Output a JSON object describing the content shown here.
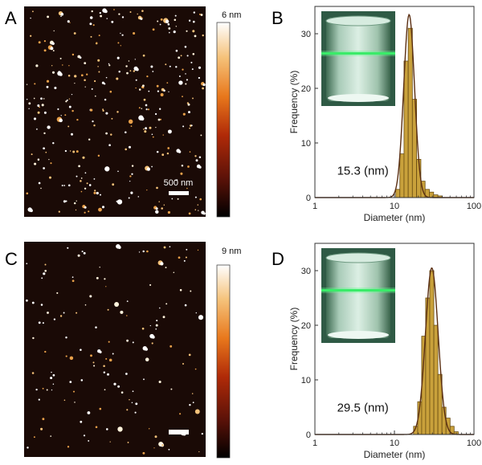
{
  "figure": {
    "panels": [
      {
        "key": "A",
        "label": "A",
        "type": "afm-image",
        "colorbar_max": "6 nm",
        "scalebar_label": "500 nm",
        "particle_seed": 11,
        "particle_count": 320
      },
      {
        "key": "B",
        "label": "B",
        "type": "histogram",
        "peak_annotation": "15.3 (nm)"
      },
      {
        "key": "C",
        "label": "C",
        "type": "afm-image",
        "colorbar_max": "9 nm",
        "scalebar_label": "",
        "particle_seed": 47,
        "particle_count": 150
      },
      {
        "key": "D",
        "label": "D",
        "type": "histogram",
        "peak_annotation": "29.5 (nm)"
      }
    ]
  },
  "colors": {
    "afm_background": "#1a0a06",
    "bar_fill": "#c9a13b",
    "bar_stroke": "#6a4d12",
    "fit_curve": "#5a2e12",
    "colormap": [
      "#000000",
      "#5c1208",
      "#b02a08",
      "#e8781c",
      "#f5c27a",
      "#ffffff"
    ]
  },
  "chart_data": [
    {
      "panel": "B",
      "type": "bar",
      "xscale": "log",
      "xlim": [
        1,
        100
      ],
      "ylim": [
        0,
        35
      ],
      "xlabel": "Diameter (nm)",
      "ylabel": "Frequency (%)",
      "xticks": [
        1,
        10,
        100
      ],
      "yticks": [
        0,
        10,
        20,
        30
      ],
      "bins": [
        {
          "x0": 10.4,
          "x1": 11.7,
          "value": 1.5
        },
        {
          "x0": 11.7,
          "x1": 13.2,
          "value": 8
        },
        {
          "x0": 13.2,
          "x1": 14.9,
          "value": 25
        },
        {
          "x0": 14.9,
          "x1": 16.8,
          "value": 31
        },
        {
          "x0": 16.8,
          "x1": 19.0,
          "value": 18
        },
        {
          "x0": 19.0,
          "x1": 21.5,
          "value": 7
        },
        {
          "x0": 21.5,
          "x1": 24.3,
          "value": 3
        },
        {
          "x0": 24.3,
          "x1": 27.5,
          "value": 1.5
        },
        {
          "x0": 27.5,
          "x1": 31.1,
          "value": 1
        },
        {
          "x0": 31.1,
          "x1": 35.2,
          "value": 0.5
        },
        {
          "x0": 35.2,
          "x1": 39.8,
          "value": 0.3
        }
      ],
      "fit": {
        "type": "lognormal",
        "mu_nm": 15.3,
        "sigma_log10": 0.068,
        "amplitude": 33.5
      },
      "annotation": "15.3 (nm)",
      "inset": "cuvette photo with green laser beam"
    },
    {
      "panel": "D",
      "type": "bar",
      "xscale": "log",
      "xlim": [
        1,
        100
      ],
      "ylim": [
        0,
        35
      ],
      "xlabel": "Diameter (nm)",
      "ylabel": "Frequency (%)",
      "xticks": [
        1,
        10,
        100
      ],
      "yticks": [
        0,
        10,
        20,
        30
      ],
      "bins": [
        {
          "x0": 17.4,
          "x1": 19.6,
          "value": 1.5
        },
        {
          "x0": 19.6,
          "x1": 22.0,
          "value": 6
        },
        {
          "x0": 22.0,
          "x1": 24.7,
          "value": 18
        },
        {
          "x0": 24.7,
          "x1": 27.8,
          "value": 25
        },
        {
          "x0": 27.8,
          "x1": 31.3,
          "value": 30
        },
        {
          "x0": 31.3,
          "x1": 35.2,
          "value": 20
        },
        {
          "x0": 35.2,
          "x1": 39.6,
          "value": 11
        },
        {
          "x0": 39.6,
          "x1": 44.5,
          "value": 5
        },
        {
          "x0": 44.5,
          "x1": 50.1,
          "value": 3
        },
        {
          "x0": 50.1,
          "x1": 56.3,
          "value": 1.5
        },
        {
          "x0": 56.3,
          "x1": 63.4,
          "value": 0.5
        }
      ],
      "fit": {
        "type": "lognormal",
        "mu_nm": 29.5,
        "sigma_log10": 0.08,
        "amplitude": 30.5
      },
      "annotation": "29.5 (nm)",
      "inset": "cuvette photo with green laser beam"
    }
  ]
}
